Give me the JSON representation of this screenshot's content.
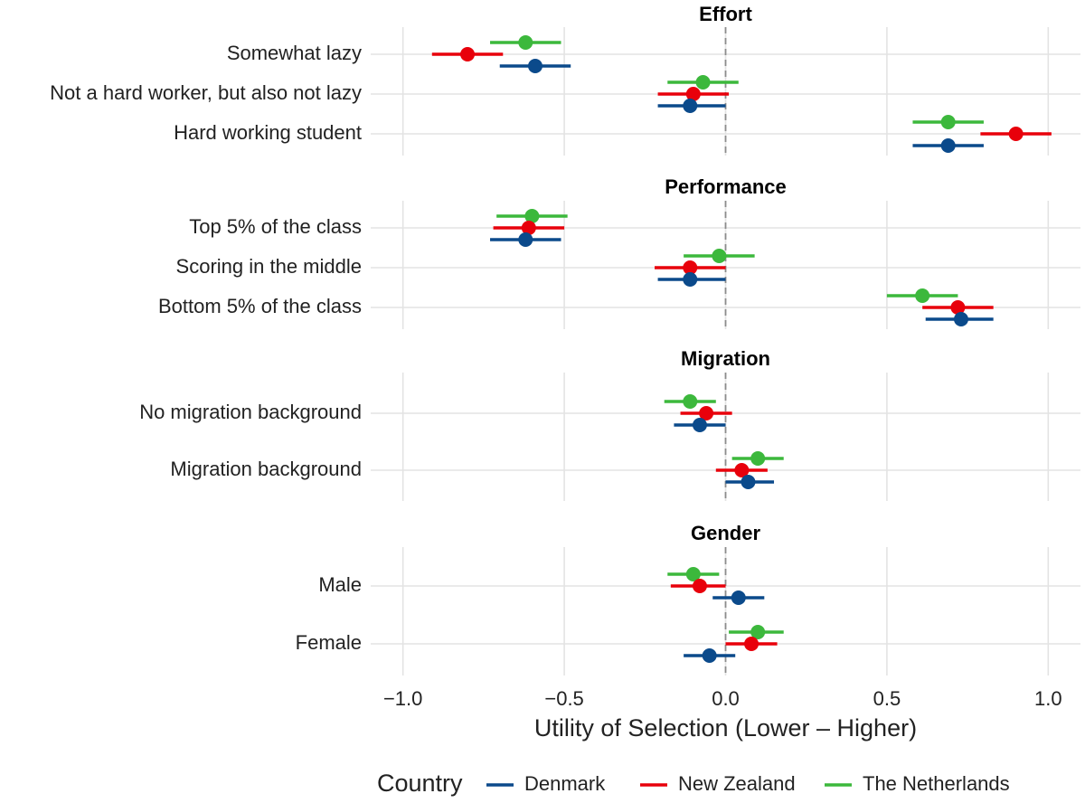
{
  "chart_data": {
    "type": "dot-and-whisker",
    "xlabel": "Utility of Selection (Lower – Higher)",
    "xlim": [
      -1.1,
      1.1
    ],
    "xticks": [
      -1.0,
      -0.5,
      0.0,
      0.5,
      1.0
    ],
    "xtick_labels": [
      "−1.0",
      "−0.5",
      "0.0",
      "0.5",
      "1.0"
    ],
    "reference_line": 0.0,
    "legend": {
      "title": "Country",
      "position": "bottom",
      "entries": [
        {
          "name": "Denmark",
          "color": "#0b4a8b"
        },
        {
          "name": "New Zealand",
          "color": "#e8000b"
        },
        {
          "name": "The Netherlands",
          "color": "#3cb83c"
        }
      ]
    },
    "facets": [
      {
        "title": "Effort",
        "categories": [
          {
            "label": "Somewhat lazy",
            "estimates": {
              "The Netherlands": {
                "est": -0.62,
                "lo": -0.73,
                "hi": -0.51
              },
              "New Zealand": {
                "est": -0.8,
                "lo": -0.91,
                "hi": -0.69
              },
              "Denmark": {
                "est": -0.59,
                "lo": -0.7,
                "hi": -0.48
              }
            }
          },
          {
            "label": "Not a hard worker, but also not lazy",
            "estimates": {
              "The Netherlands": {
                "est": -0.07,
                "lo": -0.18,
                "hi": 0.04
              },
              "New Zealand": {
                "est": -0.1,
                "lo": -0.21,
                "hi": 0.01
              },
              "Denmark": {
                "est": -0.11,
                "lo": -0.21,
                "hi": 0.0
              }
            }
          },
          {
            "label": "Hard working student",
            "estimates": {
              "The Netherlands": {
                "est": 0.69,
                "lo": 0.58,
                "hi": 0.8
              },
              "New Zealand": {
                "est": 0.9,
                "lo": 0.79,
                "hi": 1.01
              },
              "Denmark": {
                "est": 0.69,
                "lo": 0.58,
                "hi": 0.8
              }
            }
          }
        ]
      },
      {
        "title": "Performance",
        "categories": [
          {
            "label": "Top 5% of the class",
            "estimates": {
              "The Netherlands": {
                "est": -0.6,
                "lo": -0.71,
                "hi": -0.49
              },
              "New Zealand": {
                "est": -0.61,
                "lo": -0.72,
                "hi": -0.5
              },
              "Denmark": {
                "est": -0.62,
                "lo": -0.73,
                "hi": -0.51
              }
            }
          },
          {
            "label": "Scoring in the middle",
            "estimates": {
              "The Netherlands": {
                "est": -0.02,
                "lo": -0.13,
                "hi": 0.09
              },
              "New Zealand": {
                "est": -0.11,
                "lo": -0.22,
                "hi": 0.0
              },
              "Denmark": {
                "est": -0.11,
                "lo": -0.21,
                "hi": 0.0
              }
            }
          },
          {
            "label": "Bottom 5% of the class",
            "estimates": {
              "The Netherlands": {
                "est": 0.61,
                "lo": 0.5,
                "hi": 0.72
              },
              "New Zealand": {
                "est": 0.72,
                "lo": 0.61,
                "hi": 0.83
              },
              "Denmark": {
                "est": 0.73,
                "lo": 0.62,
                "hi": 0.83
              }
            }
          }
        ]
      },
      {
        "title": "Migration",
        "categories": [
          {
            "label": "No migration background",
            "estimates": {
              "The Netherlands": {
                "est": -0.11,
                "lo": -0.19,
                "hi": -0.03
              },
              "New Zealand": {
                "est": -0.06,
                "lo": -0.14,
                "hi": 0.02
              },
              "Denmark": {
                "est": -0.08,
                "lo": -0.16,
                "hi": 0.0
              }
            }
          },
          {
            "label": "Migration background",
            "estimates": {
              "The Netherlands": {
                "est": 0.1,
                "lo": 0.02,
                "hi": 0.18
              },
              "New Zealand": {
                "est": 0.05,
                "lo": -0.03,
                "hi": 0.13
              },
              "Denmark": {
                "est": 0.07,
                "lo": 0.0,
                "hi": 0.15
              }
            }
          }
        ]
      },
      {
        "title": "Gender",
        "categories": [
          {
            "label": "Male",
            "estimates": {
              "The Netherlands": {
                "est": -0.1,
                "lo": -0.18,
                "hi": -0.02
              },
              "New Zealand": {
                "est": -0.08,
                "lo": -0.17,
                "hi": 0.0
              },
              "Denmark": {
                "est": 0.04,
                "lo": -0.04,
                "hi": 0.12
              }
            }
          },
          {
            "label": "Female",
            "estimates": {
              "The Netherlands": {
                "est": 0.1,
                "lo": 0.01,
                "hi": 0.18
              },
              "New Zealand": {
                "est": 0.08,
                "lo": 0.0,
                "hi": 0.16
              },
              "Denmark": {
                "est": -0.05,
                "lo": -0.13,
                "hi": 0.03
              }
            }
          }
        ]
      }
    ]
  }
}
